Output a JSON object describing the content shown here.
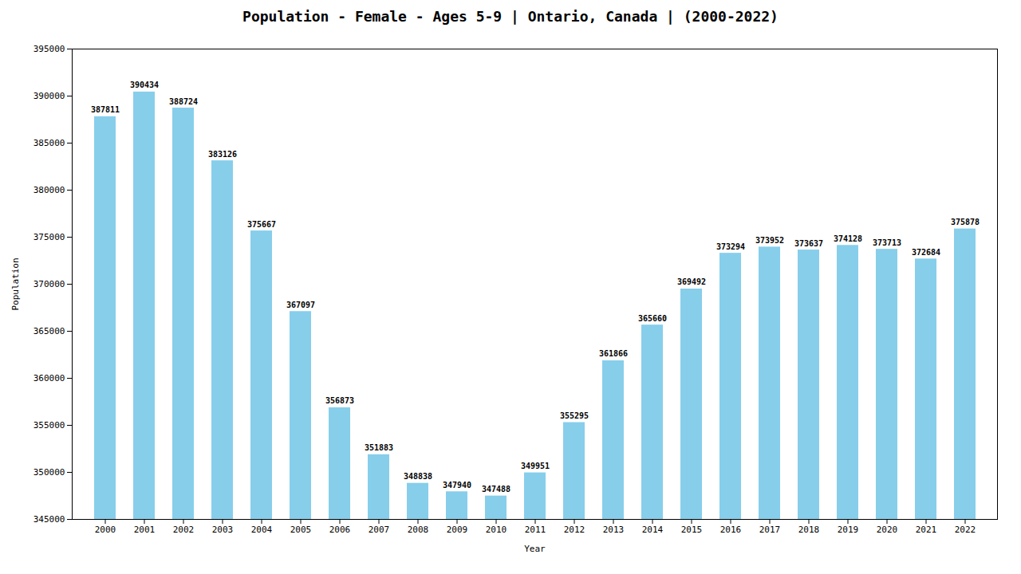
{
  "chart_data": {
    "type": "bar",
    "title": "Population - Female - Ages 5-9 | Ontario, Canada |  (2000-2022)",
    "xlabel": "Year",
    "ylabel": "Population",
    "categories": [
      "2000",
      "2001",
      "2002",
      "2003",
      "2004",
      "2005",
      "2006",
      "2007",
      "2008",
      "2009",
      "2010",
      "2011",
      "2012",
      "2013",
      "2014",
      "2015",
      "2016",
      "2017",
      "2018",
      "2019",
      "2020",
      "2021",
      "2022"
    ],
    "values": [
      387811,
      390434,
      388724,
      383126,
      375667,
      367097,
      356873,
      351883,
      348838,
      347940,
      347488,
      349951,
      355295,
      361866,
      365660,
      369492,
      373294,
      373952,
      373637,
      374128,
      373713,
      372684,
      375878
    ],
    "color": "#87CEEB",
    "ylim": [
      345000,
      395000
    ],
    "yticks": [
      345000,
      350000,
      355000,
      360000,
      365000,
      370000,
      375000,
      380000,
      385000,
      390000,
      395000
    ],
    "grid": false,
    "data_labels": true
  }
}
